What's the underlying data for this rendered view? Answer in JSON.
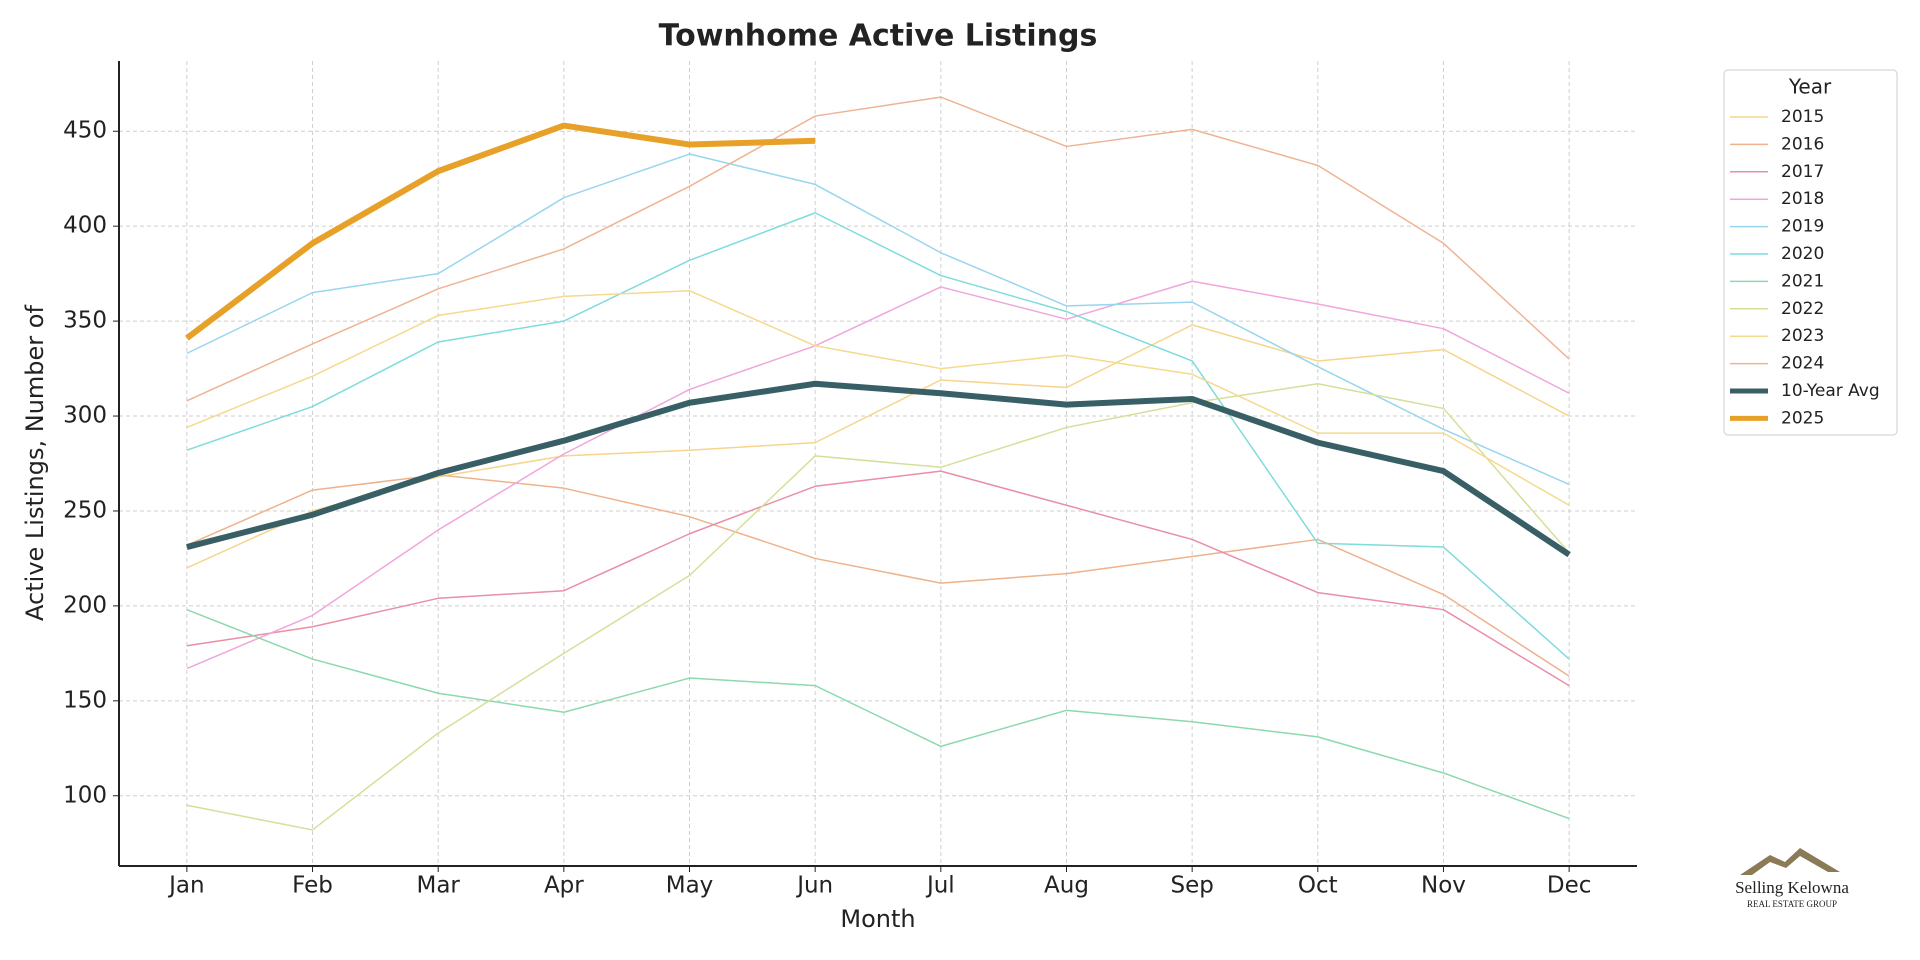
{
  "chart_data": {
    "type": "line",
    "title": "Townhome Active Listings",
    "x_label": "Month",
    "y_label": "Active Listings, Number of",
    "legend_title": "Year",
    "legend": "upper right outside",
    "grid": true,
    "categories": [
      "Jan",
      "Feb",
      "Mar",
      "Apr",
      "May",
      "Jun",
      "Jul",
      "Aug",
      "Sep",
      "Oct",
      "Nov",
      "Dec"
    ],
    "ylim": [
      63,
      487
    ],
    "yticks": [
      100,
      150,
      200,
      250,
      300,
      350,
      400,
      450
    ],
    "series": [
      {
        "name": "2015",
        "color": "#f6d58c",
        "width": 1.5,
        "values": [
          220,
          250,
          268,
          279,
          282,
          286,
          319,
          315,
          348,
          329,
          335,
          300
        ]
      },
      {
        "name": "2016",
        "color": "#eeb28c",
        "width": 1.5,
        "values": [
          232,
          261,
          269,
          262,
          247,
          225,
          212,
          217,
          226,
          235,
          206,
          163
        ]
      },
      {
        "name": "2017",
        "color": "#e98fa6",
        "width": 1.5,
        "values": [
          179,
          189,
          204,
          208,
          238,
          263,
          271,
          253,
          235,
          207,
          198,
          158
        ]
      },
      {
        "name": "2018",
        "color": "#f0a6dc",
        "width": 1.5,
        "values": [
          167,
          195,
          240,
          280,
          314,
          337,
          368,
          351,
          371,
          359,
          346,
          312
        ]
      },
      {
        "name": "2019",
        "color": "#98d6ee",
        "width": 1.5,
        "values": [
          333,
          365,
          375,
          415,
          438,
          422,
          386,
          358,
          360,
          326,
          293,
          264
        ]
      },
      {
        "name": "2020",
        "color": "#7edcdc",
        "width": 1.5,
        "values": [
          282,
          305,
          339,
          350,
          382,
          407,
          374,
          355,
          329,
          233,
          231,
          172
        ]
      },
      {
        "name": "2021",
        "color": "#8cd9ad",
        "width": 1.5,
        "values": [
          198,
          172,
          154,
          144,
          162,
          158,
          126,
          145,
          139,
          131,
          112,
          88
        ]
      },
      {
        "name": "2022",
        "color": "#d5df98",
        "width": 1.5,
        "values": [
          95,
          82,
          133,
          175,
          216,
          279,
          273,
          294,
          307,
          317,
          304,
          228
        ]
      },
      {
        "name": "2023",
        "color": "#f5d98c",
        "width": 1.5,
        "values": [
          294,
          321,
          353,
          363,
          366,
          337,
          325,
          332,
          322,
          291,
          291,
          253
        ]
      },
      {
        "name": "2024",
        "color": "#efb393",
        "width": 1.5,
        "values": [
          308,
          338,
          367,
          388,
          421,
          458,
          468,
          442,
          451,
          432,
          391,
          330
        ]
      },
      {
        "name": "10-Year Avg",
        "color": "#385f66",
        "width": 6,
        "values": [
          231,
          248,
          270,
          287,
          307,
          317,
          312,
          306,
          309,
          286,
          271,
          227
        ]
      },
      {
        "name": "2025",
        "color": "#e8a128",
        "width": 6,
        "values": [
          341,
          391,
          429,
          453,
          443,
          445,
          null,
          null,
          null,
          null,
          null,
          null
        ]
      }
    ]
  },
  "logo": {
    "name": "Selling Kelowna",
    "tagline": "REAL ESTATE GROUP"
  }
}
